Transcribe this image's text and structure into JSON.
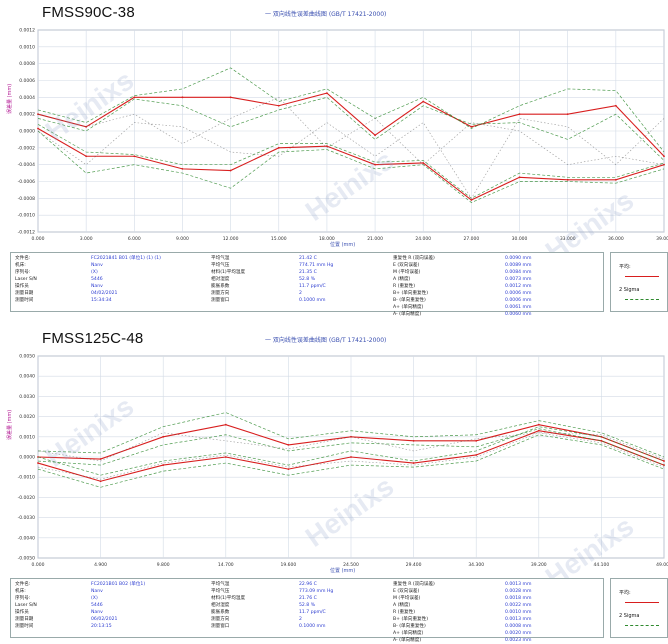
{
  "colors": {
    "mean": "#d81e1e",
    "sigma": "#2f8a2f",
    "bound": "#555555",
    "grid": "#d3dbe6",
    "axis": "#3a4fb0"
  },
  "legend": {
    "mean_label": "平均:",
    "sigma_label": "2 Sigma"
  },
  "panels": [
    {
      "label": "FMSS90C-38",
      "title": "一 双向线性误差曲线图 (GB/T 17421-2000)",
      "ylabel": "误差量 (mm)",
      "xlabel": "位置 (mm)",
      "watermark": "Heinixs",
      "info": {
        "col1_labels": [
          "文件名:",
          "机床:",
          "序列号:",
          "Laser S/N",
          "操作员",
          "测量日期",
          "测量时间"
        ],
        "col1_values": [
          "FC2021841 B01 (单位1)  (1)  (1)",
          "Nanv",
          "(X)",
          "5446",
          "Nanv",
          "04/02/2021",
          "15:34:34"
        ],
        "col2_labels": [
          "平均气温",
          "平均气压",
          "材料(1)平均温度",
          "相对湿度",
          "膨胀系数",
          "测量方向",
          "测量窗口"
        ],
        "col2_values": [
          "21.42 C",
          "774.71 mm Hg",
          "21.35 C",
          "52.8 %",
          "11.7 ppm/C",
          "2",
          "0.1000 mm"
        ],
        "col3_labels": [
          "重复性 R (双向误差)",
          "E (双向误差)",
          "M (平均误差)",
          "A (精度)",
          "R (重复性)",
          "B+ (单向重复性)",
          "B- (单向重复性)",
          "A+ (单向精度)",
          "A- (单向精度)"
        ],
        "col3_values": [
          "0.0090 mm",
          "0.0089 mm",
          "0.0084 mm",
          "0.0073 mm",
          "0.0012 mm",
          "0.0006 mm",
          "0.0006 mm",
          "0.0061 mm",
          "0.0060 mm"
        ]
      },
      "chart_data": {
        "type": "line",
        "x": [
          0,
          3,
          6,
          9,
          12,
          15,
          18,
          21,
          24,
          27,
          30,
          33,
          36,
          39
        ],
        "x_ticks": [
          "0.000",
          "3.000",
          "6.000",
          "9.000",
          "12.000",
          "15.000",
          "18.000",
          "21.000",
          "24.000",
          "27.000",
          "30.000",
          "33.000",
          "36.000",
          "39.000"
        ],
        "y_ticks": [
          "0.0012",
          "0.0010",
          "0.0008",
          "0.0006",
          "0.0004",
          "0.0002",
          "0.0000",
          "-0.0002",
          "-0.0004",
          "-0.0006",
          "-0.0008",
          "-0.0010",
          "-0.0012"
        ],
        "ylim": [
          -0.0012,
          0.0012
        ],
        "series": [
          {
            "role": "mean",
            "values": [
              0.0002,
              5e-05,
              0.0004,
              0.0004,
              0.0004,
              0.0003,
              0.00045,
              -5e-05,
              0.00035,
              5e-05,
              0.0002,
              0.0002,
              0.0003,
              -0.0003
            ]
          },
          {
            "role": "mean",
            "values": [
              3e-05,
              -0.0003,
              -0.0003,
              -0.00045,
              -0.00047,
              -0.0002,
              -0.00018,
              -0.0004,
              -0.00038,
              -0.00082,
              -0.00055,
              -0.00058,
              -0.00058,
              -0.0004
            ]
          },
          {
            "role": "sigma",
            "values": [
              0.00025,
              0.0001,
              0.00042,
              0.0005,
              0.00075,
              0.00035,
              0.0005,
              0.00015,
              0.0004,
              3e-05,
              0.0003,
              0.0005,
              0.00048,
              -0.00025
            ]
          },
          {
            "role": "sigma",
            "values": [
              0.00015,
              0.0,
              0.00038,
              0.0003,
              5e-05,
              0.00025,
              0.0004,
              -0.0001,
              0.0003,
              8e-05,
              0.0001,
              -0.0001,
              0.0002,
              -0.00035
            ]
          },
          {
            "role": "sigma",
            "values": [
              8e-05,
              -0.00025,
              -0.00028,
              -0.0004,
              -0.0004,
              -0.00015,
              -0.00015,
              -0.00037,
              -0.00035,
              -0.0008,
              -0.0005,
              -0.00055,
              -0.00055,
              -0.00038
            ]
          },
          {
            "role": "sigma",
            "values": [
              0.0,
              -0.0005,
              -0.0004,
              -0.0005,
              -0.00068,
              -0.00025,
              -0.00022,
              -0.00045,
              -0.0004,
              -0.00085,
              -0.0006,
              -0.0006,
              -0.00062,
              -0.00045
            ]
          },
          {
            "role": "bound",
            "values": [
              0.0002,
              5e-05,
              0.0002,
              -0.00015,
              0.00015,
              0.0004,
              -0.0002,
              0.00015,
              -0.0004,
              0.0001,
              0.0,
              -0.0004,
              -0.0003,
              -0.0004
            ]
          },
          {
            "role": "bound",
            "values": [
              0.0,
              -0.0004,
              0.0001,
              5e-05,
              -0.00025,
              -0.0003,
              0.0001,
              -0.0003,
              0.0001,
              -0.0008,
              0.00015,
              5e-05,
              -0.0004,
              0.00015
            ]
          }
        ]
      }
    },
    {
      "label": "FMSS125C-48",
      "title": "一 双向线性误差曲线图 (GB/T 17421-2000)",
      "ylabel": "误差量 (mm)",
      "xlabel": "位置 (mm)",
      "watermark": "Heinixs",
      "info": {
        "col1_labels": [
          "文件名:",
          "机床:",
          "序列号:",
          "Laser S/N",
          "操作员",
          "测量日期",
          "测量时间"
        ],
        "col1_values": [
          "FC2021B01 B02 (单位1)",
          "Nanv",
          "(X)",
          "5446",
          "Nanv",
          "06/02/2021",
          "20:13:15"
        ],
        "col2_labels": [
          "平均气温",
          "平均气压",
          "材料(1)平均温度",
          "相对湿度",
          "膨胀系数",
          "测量方向",
          "测量窗口"
        ],
        "col2_values": [
          "22.96 C",
          "773.09 mm Hg",
          "21.76 C",
          "52.8 %",
          "11.7 ppm/C",
          "2",
          "0.1000 mm"
        ],
        "col3_labels": [
          "重复性 R (双向误差)",
          "E (双向误差)",
          "M (平均误差)",
          "A (精度)",
          "R (重复性)",
          "B+ (单向重复性)",
          "B- (单向重复性)",
          "A+ (单向精度)",
          "A- (单向精度)"
        ],
        "col3_values": [
          "0.0013 mm",
          "0.0028 mm",
          "0.0018 mm",
          "0.0022 mm",
          "0.0010 mm",
          "0.0013 mm",
          "0.0008 mm",
          "0.0020 mm",
          "0.0023 mm"
        ]
      },
      "chart_data": {
        "type": "line",
        "x": [
          0,
          4.9,
          9.8,
          14.7,
          19.6,
          24.5,
          29.4,
          34.3,
          39.2,
          44.1,
          49.0
        ],
        "x_ticks": [
          "0.000",
          "4.900",
          "9.800",
          "14.700",
          "19.600",
          "24.500",
          "29.400",
          "34.300",
          "39.200",
          "44.100",
          "49.000"
        ],
        "y_ticks": [
          "0.0050",
          "0.0040",
          "0.0030",
          "0.0020",
          "0.0010",
          "0.0000",
          "-0.0010",
          "-0.0020",
          "-0.0030",
          "-0.0040",
          "-0.0050"
        ],
        "ylim": [
          -0.005,
          0.005
        ],
        "series": [
          {
            "role": "mean",
            "values": [
              0.0,
              -0.0001,
              0.001,
              0.0016,
              0.0006,
              0.001,
              0.0008,
              0.0008,
              0.0016,
              0.001,
              -0.0002
            ]
          },
          {
            "role": "mean",
            "values": [
              -0.0003,
              -0.0012,
              -0.0004,
              0.0,
              -0.0006,
              0.0,
              -0.0003,
              0.0001,
              0.0013,
              0.0008,
              -0.0004
            ]
          },
          {
            "role": "sigma",
            "values": [
              0.0003,
              0.0002,
              0.0015,
              0.0022,
              0.0009,
              0.0013,
              0.001,
              0.0011,
              0.0018,
              0.0012,
              0.0
            ]
          },
          {
            "role": "sigma",
            "values": [
              -0.0002,
              -0.0004,
              0.0006,
              0.0011,
              0.0003,
              0.0007,
              0.0006,
              0.0005,
              0.0014,
              0.0008,
              -0.0004
            ]
          },
          {
            "role": "sigma",
            "values": [
              0.0,
              -0.0009,
              -0.0002,
              0.0002,
              -0.0004,
              0.0003,
              -0.0002,
              0.0003,
              0.0015,
              0.001,
              -0.0002
            ]
          },
          {
            "role": "sigma",
            "values": [
              -0.0006,
              -0.0015,
              -0.0007,
              -0.0003,
              -0.0009,
              -0.0004,
              -0.0005,
              -0.0002,
              0.0011,
              0.0006,
              -0.0006
            ]
          },
          {
            "role": "bound",
            "values": [
              0.0003,
              -0.0002,
              0.0012,
              0.0008,
              0.0004,
              0.001,
              0.0003,
              0.0009,
              0.0012,
              0.0011,
              -0.0001
            ]
          },
          {
            "role": "bound",
            "values": [
              -0.0005,
              -0.0011,
              -0.0003,
              0.0001,
              -0.0005,
              -0.0002,
              -0.0004,
              0.0,
              0.0012,
              0.0007,
              -0.0005
            ]
          }
        ]
      }
    }
  ]
}
